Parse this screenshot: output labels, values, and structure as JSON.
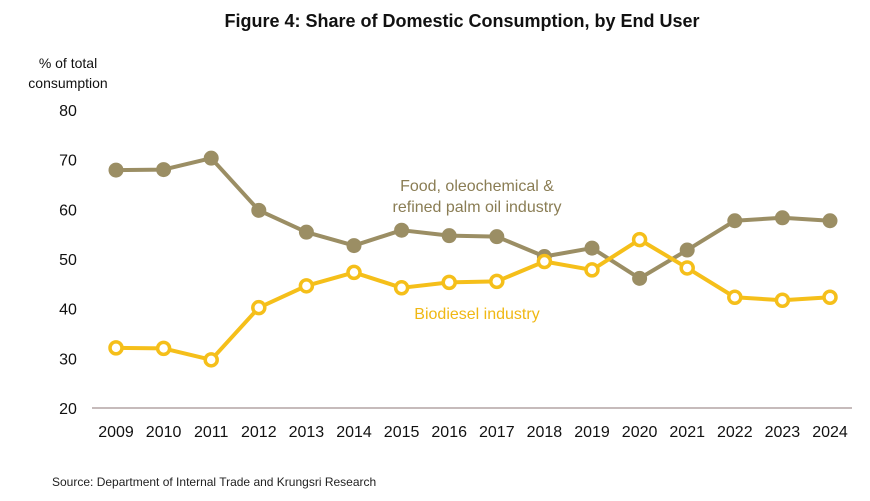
{
  "chart_data": {
    "type": "line",
    "title": "Figure 4: Share of Domestic Consumption, by End User",
    "ylabel_lines": [
      "% of total",
      "consumption"
    ],
    "xlabel": "",
    "x": [
      "2009",
      "2010",
      "2011",
      "2012",
      "2013",
      "2014",
      "2015",
      "2016",
      "2017",
      "2018",
      "2019",
      "2020",
      "2021",
      "2022",
      "2023",
      "2024"
    ],
    "ylim": [
      20,
      80
    ],
    "yticks": [
      "80",
      "70",
      "60",
      "50",
      "40",
      "30",
      "20"
    ],
    "grid": false,
    "series": [
      {
        "name_lines": [
          "Food, oleochemical &",
          "refined palm oil industry"
        ],
        "color": "#9b8e64",
        "marker": "filled-circle",
        "values": [
          67.9,
          68.0,
          70.3,
          59.8,
          55.4,
          52.7,
          55.8,
          54.7,
          54.5,
          50.5,
          52.2,
          46.1,
          51.8,
          57.7,
          58.3,
          57.7
        ]
      },
      {
        "name_lines": [
          "Biodiesel industry"
        ],
        "color": "#f5bf1a",
        "marker": "hollow-circle",
        "values": [
          32.1,
          32.0,
          29.7,
          40.2,
          44.6,
          47.3,
          44.2,
          45.3,
          45.5,
          49.5,
          47.8,
          53.9,
          48.2,
          42.3,
          41.7,
          42.3
        ]
      }
    ],
    "source": "Source: Department of Internal Trade and Krungsri Research"
  }
}
